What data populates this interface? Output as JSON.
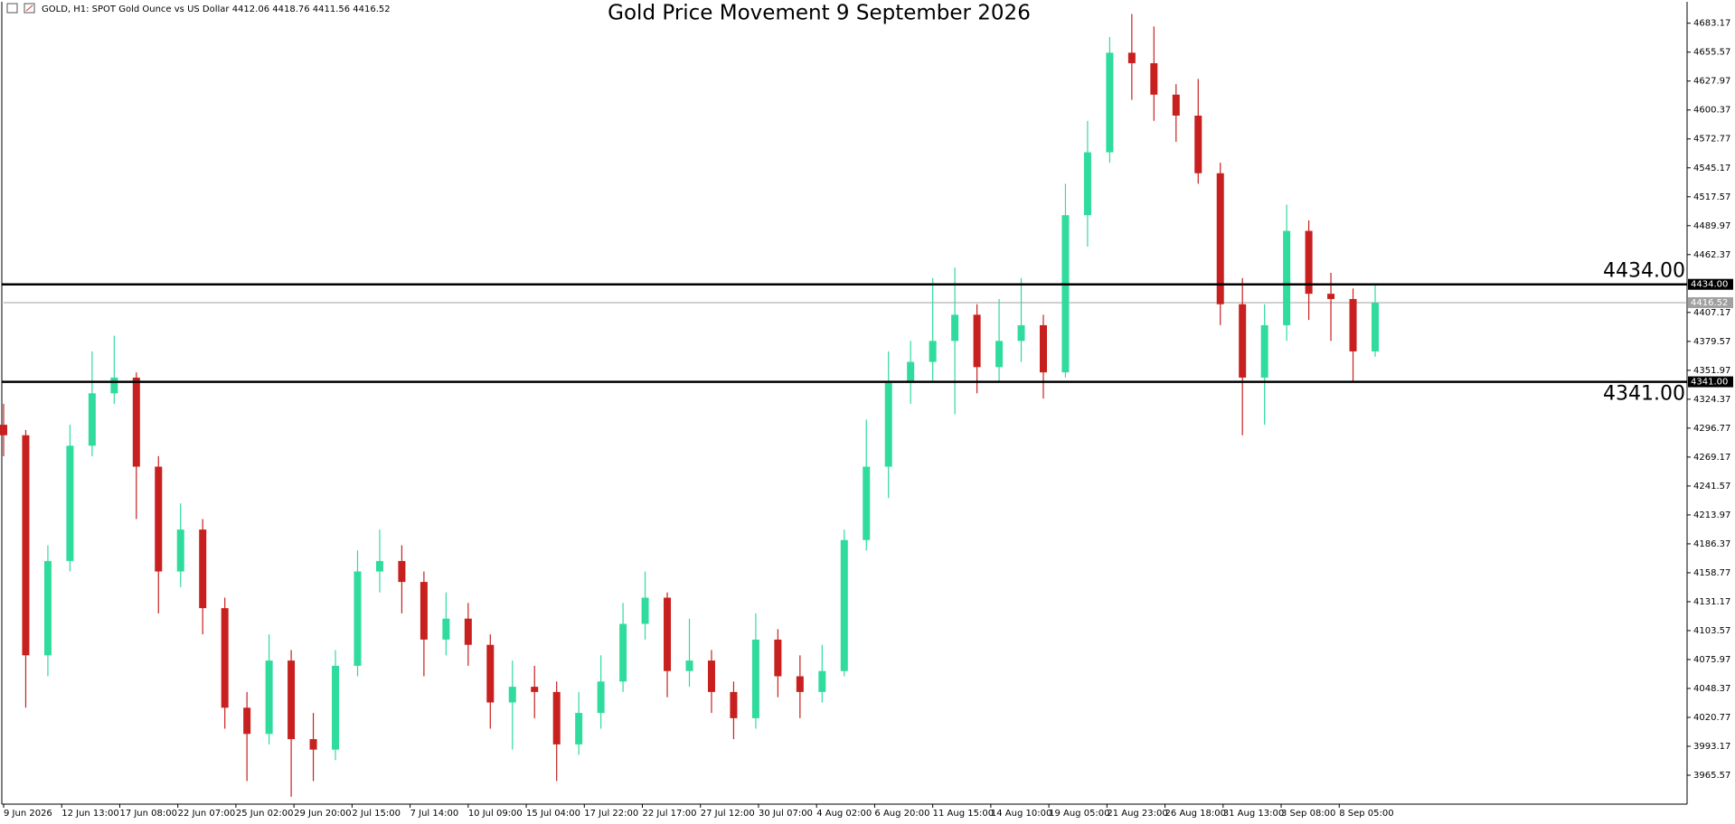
{
  "chart_data": {
    "type": "candlestick",
    "header": "GOLD, H1:  SPOT Gold Ounce vs US Dollar  4412.06 4418.76 4411.56 4416.52",
    "title": "Gold Price Movement 9 September 2026",
    "up_color": "#2fdc9e",
    "down_color": "#c8201e",
    "open": [
      4300,
      4290,
      4080,
      4170,
      4280,
      4330,
      4345,
      4260,
      4160,
      4200,
      4125,
      4030,
      4005,
      4075,
      4000,
      3990,
      4070,
      4160,
      4170,
      4150,
      4095,
      4115,
      4090,
      4035,
      4050,
      4045,
      3995,
      4025,
      4055,
      4110,
      4135,
      4065,
      4075,
      4045,
      4020,
      4095,
      4060,
      4045,
      4065,
      4190,
      4260,
      4340,
      4360,
      4380,
      4405,
      4355,
      4380,
      4395,
      4350,
      4500,
      4560,
      4655,
      4645,
      4615,
      4595,
      4540,
      4415,
      4345,
      4395,
      4485,
      4425,
      4420,
      4370
    ],
    "high": [
      4320,
      4295,
      4185,
      4300,
      4370,
      4385,
      4350,
      4270,
      4225,
      4210,
      4135,
      4045,
      4100,
      4085,
      4025,
      4085,
      4180,
      4200,
      4185,
      4160,
      4140,
      4130,
      4100,
      4075,
      4070,
      4055,
      4045,
      4080,
      4130,
      4160,
      4140,
      4115,
      4085,
      4055,
      4120,
      4105,
      4080,
      4090,
      4200,
      4305,
      4370,
      4380,
      4440,
      4450,
      4415,
      4420,
      4440,
      4405,
      4530,
      4590,
      4670,
      4692,
      4680,
      4625,
      4630,
      4550,
      4440,
      4415,
      4510,
      4495,
      4445,
      4430,
      4435
    ],
    "low": [
      4270,
      4030,
      4060,
      4160,
      4270,
      4320,
      4210,
      4120,
      4145,
      4100,
      4010,
      3960,
      3995,
      3945,
      3960,
      3980,
      4060,
      4140,
      4120,
      4060,
      4080,
      4070,
      4010,
      3990,
      4020,
      3960,
      3985,
      4010,
      4045,
      4095,
      4040,
      4050,
      4025,
      4000,
      4010,
      4040,
      4020,
      4035,
      4060,
      4180,
      4230,
      4320,
      4340,
      4310,
      4330,
      4340,
      4360,
      4325,
      4345,
      4470,
      4550,
      4610,
      4590,
      4570,
      4530,
      4395,
      4290,
      4300,
      4380,
      4400,
      4380,
      4342,
      4365
    ],
    "close": [
      4290,
      4080,
      4170,
      4280,
      4330,
      4345,
      4260,
      4160,
      4200,
      4125,
      4030,
      4005,
      4075,
      4000,
      3990,
      4070,
      4160,
      4170,
      4150,
      4095,
      4115,
      4090,
      4035,
      4050,
      4045,
      3995,
      4025,
      4055,
      4110,
      4135,
      4065,
      4075,
      4045,
      4020,
      4095,
      4060,
      4045,
      4065,
      4190,
      4260,
      4340,
      4360,
      4380,
      4405,
      4355,
      4380,
      4395,
      4350,
      4500,
      4560,
      4655,
      4645,
      4615,
      4595,
      4540,
      4415,
      4345,
      4395,
      4485,
      4425,
      4420,
      4370,
      4416.52
    ],
    "xlim": [
      0,
      76.1
    ],
    "xticks": [
      {
        "value": 0,
        "label": "9 Jun 2026"
      },
      {
        "value": 2.625,
        "label": "12 Jun 13:00"
      },
      {
        "value": 5.25,
        "label": "17 Jun 08:00"
      },
      {
        "value": 7.875,
        "label": "22 Jun 07:00"
      },
      {
        "value": 10.5,
        "label": "25 Jun 02:00"
      },
      {
        "value": 13.125,
        "label": "29 Jun 20:00"
      },
      {
        "value": 15.75,
        "label": "2 Jul 15:00"
      },
      {
        "value": 18.375,
        "label": "7 Jul 14:00"
      },
      {
        "value": 21,
        "label": "10 Jul 09:00"
      },
      {
        "value": 23.625,
        "label": "15 Jul 04:00"
      },
      {
        "value": 26.25,
        "label": "17 Jul 22:00"
      },
      {
        "value": 28.875,
        "label": "22 Jul 17:00"
      },
      {
        "value": 31.5,
        "label": "27 Jul 12:00"
      },
      {
        "value": 34.125,
        "label": "30 Jul 07:00"
      },
      {
        "value": 36.75,
        "label": "4 Aug 02:00"
      },
      {
        "value": 39.375,
        "label": "6 Aug 20:00"
      },
      {
        "value": 42,
        "label": "11 Aug 15:00"
      },
      {
        "value": 44.625,
        "label": "14 Aug 10:00"
      },
      {
        "value": 47.25,
        "label": "19 Aug 05:00"
      },
      {
        "value": 49.875,
        "label": "21 Aug 23:00"
      },
      {
        "value": 52.5,
        "label": "26 Aug 18:00"
      },
      {
        "value": 55.125,
        "label": "31 Aug 13:00"
      },
      {
        "value": 57.75,
        "label": "3 Sep 08:00"
      },
      {
        "value": 60.375,
        "label": "8 Sep 05:00"
      }
    ],
    "ylim": [
      3938,
      4703.6
    ],
    "yticks": [
      3965.57,
      3993.17,
      4020.77,
      4048.37,
      4075.97,
      4103.57,
      4131.17,
      4158.77,
      4186.37,
      4213.97,
      4241.57,
      4269.17,
      4296.77,
      4324.37,
      4351.97,
      4379.57,
      4407.17,
      4462.37,
      4489.97,
      4517.57,
      4545.17,
      4572.77,
      4600.37,
      4627.97,
      4655.57,
      4683.17
    ],
    "hlines": [
      {
        "value": 4434,
        "label": "4434.00"
      },
      {
        "value": 4341,
        "label": "4341.00"
      }
    ],
    "bid": 4416.52
  }
}
